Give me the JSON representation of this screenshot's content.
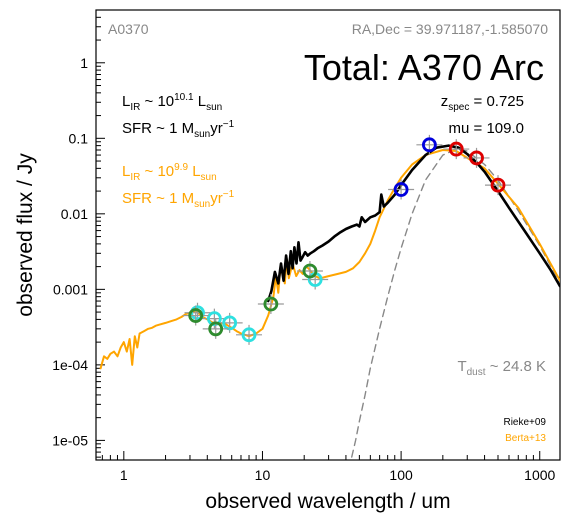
{
  "chart_data": {
    "type": "line",
    "xscale": "log",
    "yscale": "log",
    "xlim": [
      0.63,
      1400
    ],
    "ylim": [
      5.5e-06,
      5
    ],
    "xlabel": "observed wavelength / um",
    "ylabel": "observed flux / Jy",
    "x_ticks": [
      {
        "value": 1,
        "label": "1"
      },
      {
        "value": 10,
        "label": "10"
      },
      {
        "value": 100,
        "label": "100"
      },
      {
        "value": 1000,
        "label": "1000"
      }
    ],
    "y_ticks": [
      {
        "value": 1,
        "label": "1"
      },
      {
        "value": 0.1,
        "label": "0.1"
      },
      {
        "value": 0.01,
        "label": "0.01"
      },
      {
        "value": 0.001,
        "label": "0.001"
      },
      {
        "value": 0.0001,
        "label": "1e-04"
      },
      {
        "value": 1e-05,
        "label": "1e-05"
      }
    ],
    "annotations": {
      "object_id": "A0370",
      "radec": "RA,Dec = 39.971187,-1.585070",
      "title": "Total: A370 Arc",
      "zspec_prefix": "z",
      "zspec_sub": "spec",
      "zspec_value": " = 0.725",
      "mu": "mu = 109.0",
      "tdust_prefix": "T",
      "tdust_sub": "dust",
      "tdust_value": " ~ 24.8 K",
      "rieke_lir": {
        "pre": "L",
        "sub": "IR",
        "mid": " ~ 10",
        "sup": "10.1",
        "post": " L",
        "sub2": "sun"
      },
      "rieke_sfr": {
        "pre": "SFR ~ 1 M",
        "sub": "sun",
        "post": "yr",
        "sup": "−1"
      },
      "berta_lir": {
        "pre": "L",
        "sub": "IR",
        "mid": " ~ 10",
        "sup": "9.9",
        "post": " L",
        "sub2": "sun"
      },
      "berta_sfr": {
        "pre": "SFR ~ 1 M",
        "sub": "sun",
        "post": "yr",
        "sup": "−1"
      }
    },
    "legend": {
      "placement": "bottom-right",
      "entries": [
        {
          "label": "Rieke+09",
          "color": "#000000"
        },
        {
          "label": "Berta+13",
          "color": "#ffa500"
        }
      ]
    },
    "series": [
      {
        "name": "Rieke+09",
        "color": "#000000",
        "style": "solid",
        "x": [
          11.0,
          11.6,
          12.3,
          13.0,
          13.6,
          14.2,
          14.8,
          15.4,
          16.0,
          16.5,
          17.0,
          17.6,
          18.2,
          18.8,
          19.5,
          20.3,
          21.2,
          22.2,
          23.5,
          25.0,
          27,
          30,
          33,
          36,
          40,
          44,
          48,
          50,
          52,
          55,
          60,
          65,
          70,
          72,
          75,
          80,
          90,
          100,
          120,
          150,
          180,
          220,
          260,
          300,
          350,
          400,
          500,
          600,
          800,
          1000,
          1200,
          1400
        ],
        "y": [
          0.0007,
          0.00095,
          0.0017,
          0.0012,
          0.0022,
          0.0013,
          0.0028,
          0.0016,
          0.0032,
          0.0019,
          0.0036,
          0.0022,
          0.0042,
          0.0024,
          0.0027,
          0.0031,
          0.0028,
          0.003,
          0.0032,
          0.0035,
          0.0038,
          0.0043,
          0.005,
          0.0056,
          0.0063,
          0.0068,
          0.0072,
          0.0068,
          0.009,
          0.0078,
          0.009,
          0.0095,
          0.0105,
          0.018,
          0.0125,
          0.014,
          0.018,
          0.024,
          0.038,
          0.06,
          0.075,
          0.08,
          0.075,
          0.062,
          0.048,
          0.036,
          0.02,
          0.012,
          0.0055,
          0.003,
          0.0018,
          0.0011
        ]
      },
      {
        "name": "Berta+13",
        "color": "#ffa500",
        "style": "solid",
        "x": [
          0.68,
          0.72,
          0.76,
          0.8,
          0.85,
          0.9,
          0.95,
          1.0,
          1.05,
          1.1,
          1.15,
          1.2,
          1.25,
          1.3,
          1.4,
          1.5,
          1.6,
          1.7,
          1.8,
          2.0,
          2.2,
          2.4,
          2.6,
          2.8,
          3.0,
          3.2,
          3.4,
          3.6,
          3.8,
          4.0,
          4.3,
          4.6,
          5.0,
          5.5,
          6.0,
          6.5,
          7.0,
          7.5,
          8.0,
          9.0,
          10.0,
          11.0,
          11.5,
          12.0,
          12.5,
          13.0,
          13.5,
          14.5,
          15.0,
          15.5,
          16.5,
          17.5,
          18.5,
          19.5,
          20.5,
          21.5,
          22.5,
          24,
          26,
          30,
          35,
          40,
          45,
          50,
          55,
          60,
          65,
          70,
          80,
          90,
          100,
          120,
          150,
          200,
          250,
          300,
          400,
          500,
          700,
          1000,
          1400
        ],
        "y": [
          9e-05,
          0.00013,
          0.00012,
          0.00014,
          0.00015,
          0.00013,
          0.00017,
          0.0002,
          0.00015,
          0.00022,
          0.0001,
          0.00024,
          0.00017,
          0.00026,
          0.00028,
          0.0003,
          0.00031,
          0.00033,
          0.00034,
          0.00036,
          0.00038,
          0.0004,
          0.00043,
          0.00047,
          0.00049,
          0.00051,
          0.0005,
          0.00045,
          0.00042,
          0.0004,
          0.00037,
          0.00035,
          0.00036,
          0.00034,
          0.00031,
          0.00028,
          0.00026,
          0.00025,
          0.00024,
          0.00026,
          0.0003,
          0.00045,
          0.0006,
          0.0008,
          0.0015,
          0.0009,
          0.002,
          0.0012,
          0.0025,
          0.0014,
          0.0022,
          0.0015,
          0.0018,
          0.0016,
          0.002,
          0.0019,
          0.0017,
          0.0015,
          0.0014,
          0.0015,
          0.0016,
          0.0017,
          0.0019,
          0.0023,
          0.003,
          0.004,
          0.006,
          0.009,
          0.015,
          0.022,
          0.03,
          0.045,
          0.06,
          0.07,
          0.068,
          0.055,
          0.04,
          0.025,
          0.012,
          0.004,
          0.0013
        ]
      },
      {
        "name": "",
        "color": "#888888",
        "style": "dashed",
        "x": [
          44,
          47,
          50,
          55,
          60,
          70,
          80,
          90,
          100,
          120,
          150,
          200,
          250,
          300,
          400,
          500,
          700,
          1000,
          1400
        ],
        "y": [
          6e-06,
          1e-05,
          1.8e-05,
          4e-05,
          9e-05,
          0.0003,
          0.0008,
          0.0018,
          0.0035,
          0.01,
          0.028,
          0.06,
          0.072,
          0.068,
          0.045,
          0.028,
          0.011,
          0.0038,
          0.0012
        ]
      }
    ],
    "points": [
      {
        "color": "#2ee0e0",
        "x": 3.4,
        "y": 0.00049
      },
      {
        "color": "#2ee0e0",
        "x": 4.5,
        "y": 0.00041
      },
      {
        "color": "#2ee0e0",
        "x": 5.8,
        "y": 0.00036
      },
      {
        "color": "#2ee0e0",
        "x": 8.0,
        "y": 0.00025
      },
      {
        "color": "#2ee0e0",
        "x": 24.0,
        "y": 0.00135
      },
      {
        "color": "#2e8b2e",
        "x": 3.3,
        "y": 0.00045
      },
      {
        "color": "#2e8b2e",
        "x": 4.6,
        "y": 0.0003
      },
      {
        "color": "#2e8b2e",
        "x": 11.5,
        "y": 0.00064
      },
      {
        "color": "#2e8b2e",
        "x": 22.0,
        "y": 0.00175
      },
      {
        "color": "#0000dd",
        "x": 100,
        "y": 0.021
      },
      {
        "color": "#0000dd",
        "x": 160,
        "y": 0.082
      },
      {
        "color": "#dd0000",
        "x": 250,
        "y": 0.072
      },
      {
        "color": "#dd0000",
        "x": 350,
        "y": 0.055
      },
      {
        "color": "#dd0000",
        "x": 500,
        "y": 0.024
      }
    ]
  }
}
